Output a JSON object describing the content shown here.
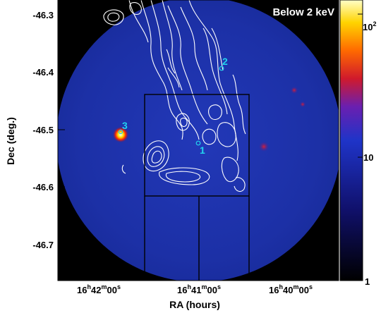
{
  "panel_label": "Below 2 keV",
  "axes": {
    "xlabel": "RA (hours)",
    "ylabel": "Dec (deg.)",
    "yticks": [
      "-46.3",
      "-46.4",
      "-46.5",
      "-46.6",
      "-46.7"
    ],
    "xticks": [
      {
        "h": "16",
        "m": "42",
        "s": "00"
      },
      {
        "h": "16",
        "m": "41",
        "s": "00"
      },
      {
        "h": "16",
        "m": "40",
        "s": "00"
      }
    ],
    "unit_h": "h",
    "unit_m": "m",
    "unit_s": "s"
  },
  "colorbar": {
    "labels": [
      "1",
      "10",
      "10"
    ],
    "exponent": "2",
    "scale": "log"
  },
  "sources": [
    {
      "label": "1",
      "color": "#22d3ee"
    },
    {
      "label": "2",
      "color": "#22d3ee"
    },
    {
      "label": "3",
      "color": "#22d3ee"
    }
  ],
  "colors": {
    "background": "#000000",
    "field": "#1a2fa0",
    "contours": "#ffffff",
    "box": "#000000",
    "hotspot_core": "#ffffff",
    "hotspot": "#ff2a00"
  }
}
